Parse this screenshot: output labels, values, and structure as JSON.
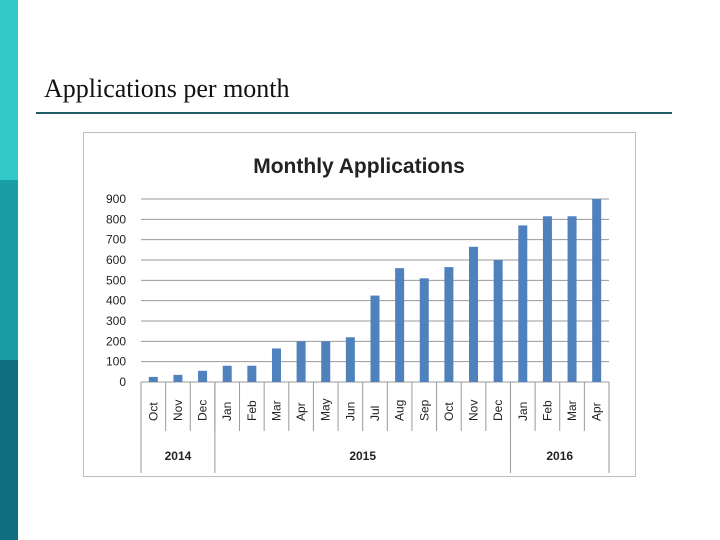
{
  "slide": {
    "title": "Applications per month"
  },
  "colors": {
    "sidebar_top": "#33c9c9",
    "sidebar_mid": "#1a9ea6",
    "sidebar_bottom": "#0f6e80",
    "title_rule": "#1f5e66",
    "bar": "#4f81bd"
  },
  "chart_data": {
    "type": "bar",
    "title": "Monthly Applications",
    "xlabel": "",
    "ylabel": "",
    "ylim": [
      0,
      900
    ],
    "yticks": [
      0,
      100,
      200,
      300,
      400,
      500,
      600,
      700,
      800,
      900
    ],
    "grid": true,
    "legend": "none",
    "categories": [
      "Oct",
      "Nov",
      "Dec",
      "Jan",
      "Feb",
      "Mar",
      "Apr",
      "May",
      "Jun",
      "Jul",
      "Aug",
      "Sep",
      "Oct",
      "Nov",
      "Dec",
      "Jan",
      "Feb",
      "Mar",
      "Apr"
    ],
    "values": [
      25,
      35,
      55,
      80,
      80,
      165,
      200,
      200,
      220,
      425,
      560,
      510,
      565,
      665,
      600,
      770,
      815,
      815,
      900
    ],
    "groups": [
      {
        "label": "2014",
        "span": 3
      },
      {
        "label": "2015",
        "span": 12
      },
      {
        "label": "2016",
        "span": 4
      }
    ]
  }
}
